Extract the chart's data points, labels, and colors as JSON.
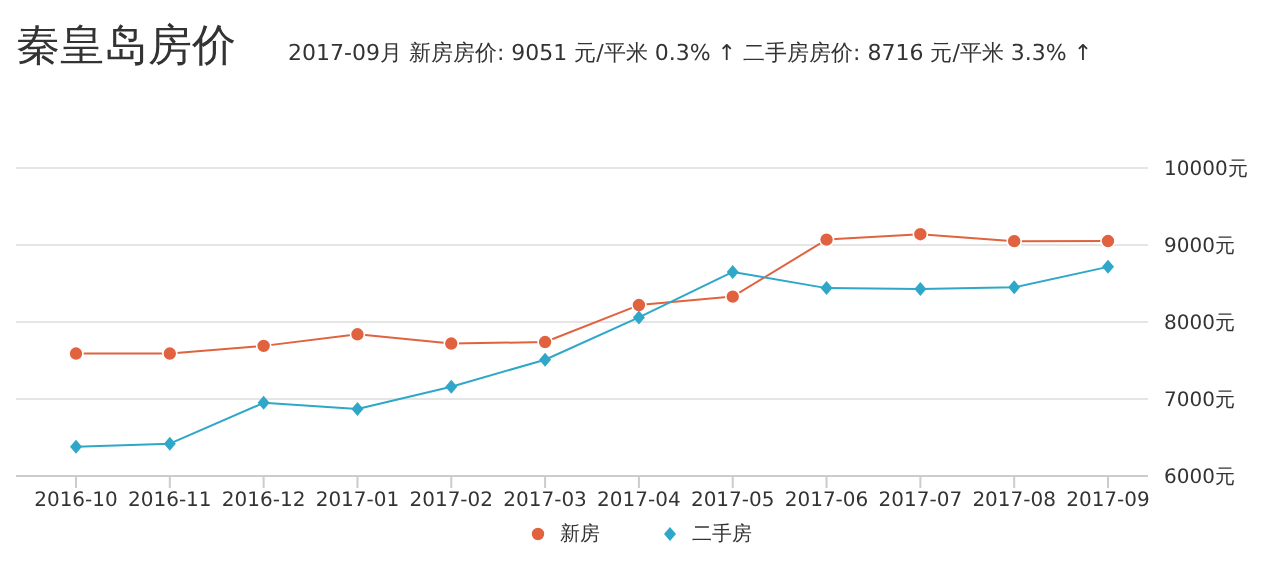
{
  "chart_data": {
    "type": "line",
    "title": "秦皇岛房价",
    "subtitle": "2017-09月    新房房价: 9051 元/平米  0.3% ↑    二手房房价: 8716 元/平米  3.3% ↑",
    "categories": [
      "2016-10",
      "2016-11",
      "2016-12",
      "2017-01",
      "2017-02",
      "2017-03",
      "2017-04",
      "2017-05",
      "2017-06",
      "2017-07",
      "2017-08",
      "2017-09"
    ],
    "series": [
      {
        "name": "新房",
        "color": "#e0623e",
        "marker": "circle",
        "values": [
          7590,
          7590,
          7690,
          7840,
          7720,
          7740,
          8220,
          8330,
          9070,
          9140,
          9050,
          9051
        ]
      },
      {
        "name": "二手房",
        "color": "#2ea7c8",
        "marker": "diamond",
        "values": [
          6380,
          6420,
          6950,
          6870,
          7160,
          7510,
          8060,
          8650,
          8440,
          8430,
          8450,
          8716
        ]
      }
    ],
    "ylim": [
      6000,
      10000
    ],
    "yticks": [
      {
        "value": 6000,
        "label": "6000元"
      },
      {
        "value": 7000,
        "label": "7000元"
      },
      {
        "value": 8000,
        "label": "8000元"
      },
      {
        "value": 9000,
        "label": "9000元"
      },
      {
        "value": 10000,
        "label": "10000元"
      }
    ],
    "grid": "y",
    "legend": "bottom"
  }
}
